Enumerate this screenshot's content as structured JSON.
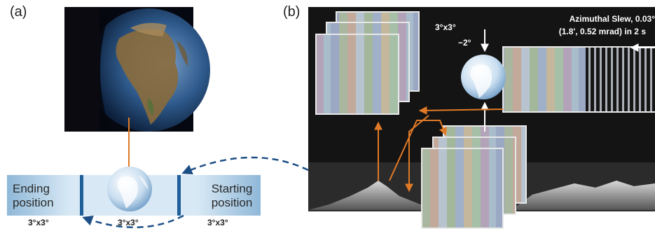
{
  "panel_a": {
    "label": "(a)",
    "ending_label_line1": "Ending",
    "ending_label_line2": "position",
    "starting_label_line1": "Starting",
    "starting_label_line2": "position",
    "dims": [
      "3°x3°",
      "3°x3°",
      "3°x3°"
    ]
  },
  "panel_b": {
    "label": "(b)",
    "fov_label": "3°x3°",
    "offset_label": "−2°",
    "slew_line1": "Azimuthal Slew, 0.03°",
    "slew_line2": "(1.8', 0.52 mrad) in 2 s"
  },
  "colors": {
    "bar_light": "#cfe3f2",
    "bar_dark": "#8fb8d8",
    "divider": "#1f5f9a",
    "orange_arrow": "#e07a26",
    "dashed_arrow": "#1d4f86",
    "dark_bg": "#141414"
  },
  "icons": [
    "earth-globe-icon",
    "globe-icon"
  ]
}
